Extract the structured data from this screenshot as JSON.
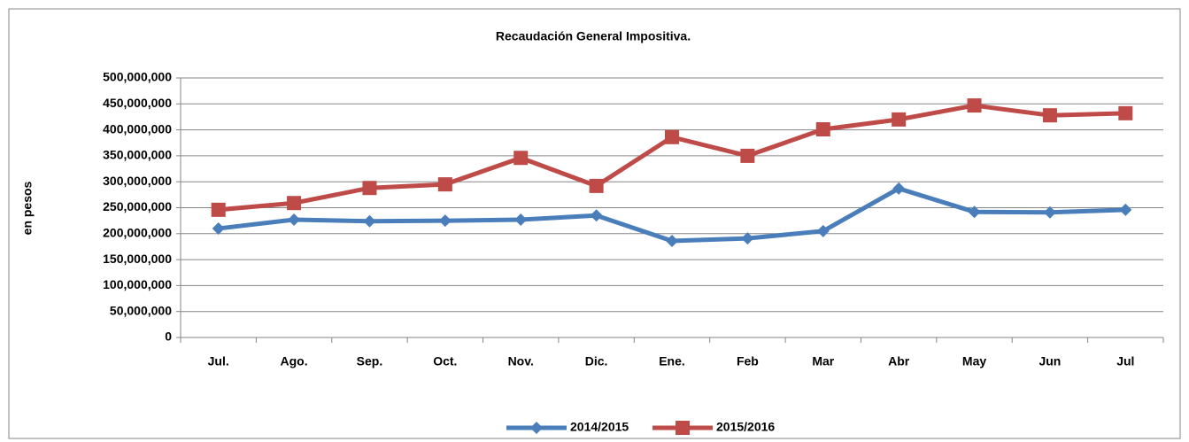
{
  "chart_data": {
    "type": "line",
    "title": "Recaudación General Impositiva.",
    "ylabel": "en pesos",
    "categories": [
      "Jul.",
      "Ago.",
      "Sep.",
      "Oct.",
      "Nov.",
      "Dic.",
      "Ene.",
      "Feb",
      "Mar",
      "Abr",
      "May",
      "Jun",
      "Jul"
    ],
    "series": [
      {
        "name": "2014/2015",
        "color": "#4a7ebb",
        "marker": "diamond",
        "values": [
          210000000,
          227000000,
          224000000,
          225000000,
          227000000,
          235000000,
          186000000,
          191000000,
          205000000,
          287000000,
          242000000,
          241000000,
          246000000
        ]
      },
      {
        "name": "2015/2016",
        "color": "#be4b48",
        "marker": "square",
        "values": [
          246000000,
          259000000,
          288000000,
          295000000,
          346000000,
          292000000,
          386000000,
          350000000,
          401000000,
          420000000,
          447000000,
          428000000,
          432000000
        ]
      }
    ],
    "ylim": [
      0,
      500000000
    ],
    "yticks": [
      0,
      {
        "value": 50000000,
        "label": "50,000,000"
      },
      {
        "value": 100000000,
        "label": "100,000,000"
      },
      {
        "value": 150000000,
        "label": "150,000,000"
      },
      {
        "value": 200000000,
        "label": "200,000,000"
      },
      {
        "value": 250000000,
        "label": "250,000,000"
      },
      {
        "value": 300000000,
        "label": "300,000,000"
      },
      {
        "value": 350000000,
        "label": "350,000,000"
      },
      {
        "value": 400000000,
        "label": "400,000,000"
      },
      {
        "value": 450000000,
        "label": "450,000,000"
      },
      {
        "value": 500000000,
        "label": "500,000,000"
      }
    ],
    "grid": true,
    "legend": "bottom"
  }
}
